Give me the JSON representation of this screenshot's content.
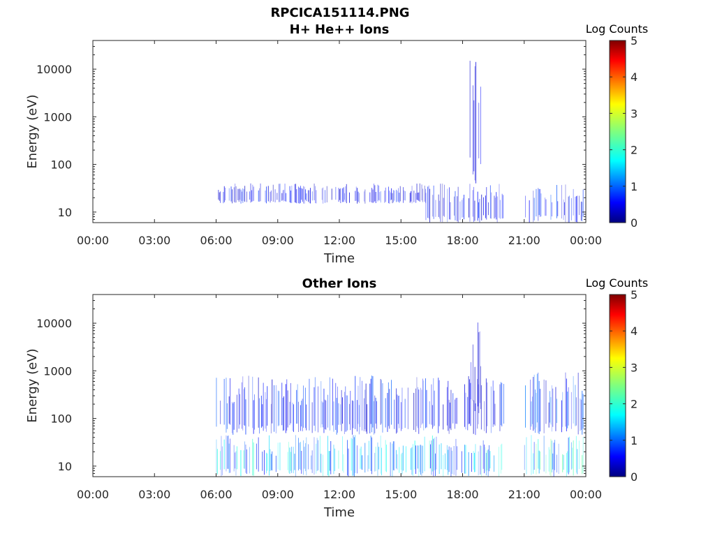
{
  "figure_title": "RPCICA151114.PNG",
  "chart_data": [
    {
      "type": "heatmap",
      "title": "H+ He++ Ions",
      "xlabel": "Time",
      "ylabel": "Energy (eV)",
      "x_ticks": [
        "00:00",
        "03:00",
        "06:00",
        "09:00",
        "12:00",
        "15:00",
        "18:00",
        "21:00",
        "00:00"
      ],
      "xlim_hours": [
        0,
        24
      ],
      "y_scale": "log",
      "y_ticks": [
        "10",
        "100",
        "1000",
        "10000"
      ],
      "ylim": [
        6,
        40000
      ],
      "colorbar": {
        "label": "Log Counts",
        "min": 0,
        "max": 5,
        "ticks": [
          "0",
          "1",
          "2",
          "3",
          "4",
          "5"
        ],
        "colormap": "jet"
      },
      "grid": false,
      "regions": [
        {
          "t_start": 6.1,
          "t_end": 16.2,
          "e_min": 15,
          "e_max": 40,
          "level": 0.5
        },
        {
          "t_start": 16.2,
          "t_end": 20.0,
          "e_min": 6,
          "e_max": 40,
          "level": 0.5
        },
        {
          "t_start": 18.3,
          "t_end": 18.9,
          "e_min": 40,
          "e_max": 30000,
          "level": 0.4
        },
        {
          "t_start": 21.0,
          "t_end": 23.9,
          "e_min": 6,
          "e_max": 40,
          "level": 0.6
        }
      ]
    },
    {
      "type": "heatmap",
      "title": "Other Ions",
      "xlabel": "Time",
      "ylabel": "Energy (eV)",
      "x_ticks": [
        "00:00",
        "03:00",
        "06:00",
        "09:00",
        "12:00",
        "15:00",
        "18:00",
        "21:00",
        "00:00"
      ],
      "xlim_hours": [
        0,
        24
      ],
      "y_scale": "log",
      "y_ticks": [
        "10",
        "100",
        "1000",
        "10000"
      ],
      "ylim": [
        6,
        40000
      ],
      "colorbar": {
        "label": "Log Counts",
        "min": 0,
        "max": 5,
        "ticks": [
          "0",
          "1",
          "2",
          "3",
          "4",
          "5"
        ],
        "colormap": "jet"
      },
      "grid": false,
      "regions": [
        {
          "t_start": 6.0,
          "t_end": 20.0,
          "e_min": 6,
          "e_max": 45,
          "level": 1.2
        },
        {
          "t_start": 6.0,
          "t_end": 20.0,
          "e_min": 45,
          "e_max": 800,
          "level": 0.6
        },
        {
          "t_start": 18.3,
          "t_end": 18.9,
          "e_min": 100,
          "e_max": 12000,
          "level": 0.5
        },
        {
          "t_start": 21.0,
          "t_end": 23.9,
          "e_min": 6,
          "e_max": 45,
          "level": 1.4
        },
        {
          "t_start": 21.0,
          "t_end": 23.9,
          "e_min": 45,
          "e_max": 1000,
          "level": 0.7
        }
      ]
    }
  ]
}
